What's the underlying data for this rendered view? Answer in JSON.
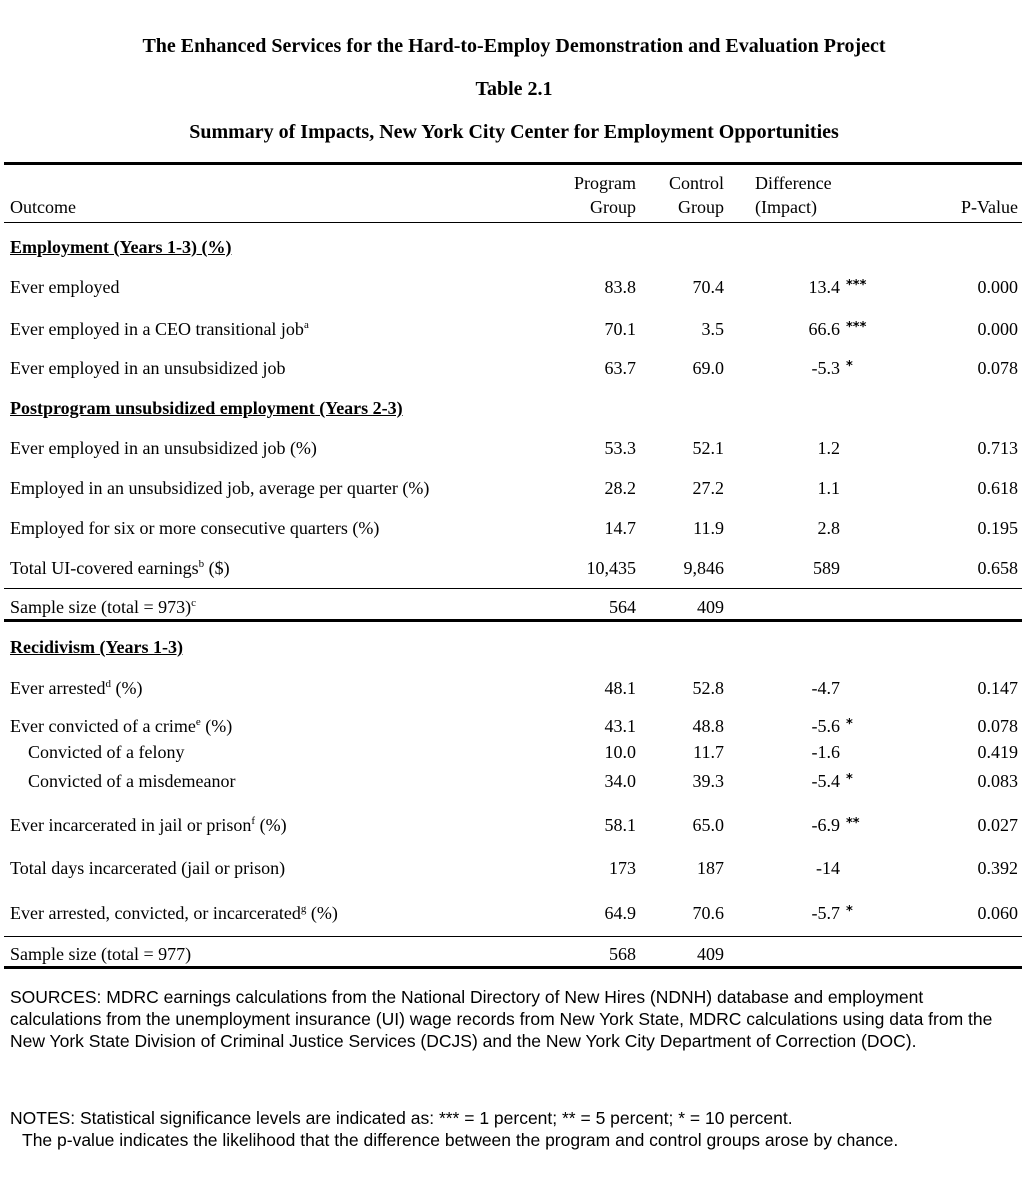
{
  "doc": {
    "project_title": "The Enhanced Services for the Hard-to-Employ Demonstration and Evaluation Project",
    "table_number": "Table 2.1",
    "table_title": "Summary of Impacts, New York City Center for Employment Opportunities"
  },
  "headers": {
    "outcome": "Outcome",
    "program_l1": "Program",
    "program_l2": "Group",
    "control_l1": "Control",
    "control_l2": "Group",
    "difference_l1": "Difference",
    "difference_l2": "(Impact)",
    "pvalue": "P-Value"
  },
  "sections": {
    "employment": "Employment (Years 1-3) (%)",
    "postprogram": "Postprogram unsubsidized employment  (Years 2-3)",
    "recidivism": "Recidivism (Years 1-3)"
  },
  "rows": {
    "r1": {
      "label": "Ever employed",
      "sup": "",
      "suffix": "",
      "program": "83.8",
      "control": "70.4",
      "difference": "13.4",
      "stars": "***",
      "pvalue": "0.000"
    },
    "r2": {
      "label": "Ever employed in a CEO transitional job",
      "sup": "a",
      "suffix": "",
      "program": "70.1",
      "control": "3.5",
      "difference": "66.6",
      "stars": "***",
      "pvalue": "0.000"
    },
    "r3": {
      "label": "Ever employed in an unsubsidized job",
      "sup": "",
      "suffix": "",
      "program": "63.7",
      "control": "69.0",
      "difference": "-5.3",
      "stars": "*",
      "pvalue": "0.078"
    },
    "r4": {
      "label": "Ever employed in an unsubsidized job (%)",
      "sup": "",
      "suffix": "",
      "program": "53.3",
      "control": "52.1",
      "difference": "1.2",
      "stars": "",
      "pvalue": "0.713"
    },
    "r5": {
      "label": "Employed in an unsubsidized job, average per quarter (%)",
      "sup": "",
      "suffix": "",
      "program": "28.2",
      "control": "27.2",
      "difference": "1.1",
      "stars": "",
      "pvalue": "0.618"
    },
    "r6": {
      "label": "Employed for six or more consecutive quarters (%)",
      "sup": "",
      "suffix": "",
      "program": "14.7",
      "control": "11.9",
      "difference": "2.8",
      "stars": "",
      "pvalue": "0.195"
    },
    "r7": {
      "label": "Total UI-covered earnings",
      "sup": "b",
      "suffix": " ($)",
      "program": "10,435",
      "control": "9,846",
      "difference": "589",
      "stars": "",
      "pvalue": "0.658"
    },
    "s1": {
      "label": "Sample size (total = 973)",
      "sup": "c",
      "program": "564",
      "control": "409"
    },
    "r8": {
      "label": "Ever arrested",
      "sup": "d",
      "suffix": " (%)",
      "program": "48.1",
      "control": "52.8",
      "difference": "-4.7",
      "stars": "",
      "pvalue": "0.147"
    },
    "r9": {
      "label": "Ever convicted of a crime",
      "sup": "e",
      "suffix": " (%)",
      "program": "43.1",
      "control": "48.8",
      "difference": "-5.6",
      "stars": "*",
      "pvalue": "0.078"
    },
    "r10": {
      "label": "Convicted of a felony",
      "sup": "",
      "suffix": "",
      "program": "10.0",
      "control": "11.7",
      "difference": "-1.6",
      "stars": "",
      "pvalue": "0.419"
    },
    "r11": {
      "label": "Convicted of a misdemeanor",
      "sup": "",
      "suffix": "",
      "program": "34.0",
      "control": "39.3",
      "difference": "-5.4",
      "stars": "*",
      "pvalue": "0.083"
    },
    "r12": {
      "label": "Ever incarcerated in jail or prison",
      "sup": "f",
      "suffix": " (%)",
      "program": "58.1",
      "control": "65.0",
      "difference": "-6.9",
      "stars": "**",
      "pvalue": "0.027"
    },
    "r13": {
      "label": "Total days incarcerated (jail or prison)",
      "sup": "",
      "suffix": "",
      "program": "173",
      "control": "187",
      "difference": "-14",
      "stars": "",
      "pvalue": "0.392"
    },
    "r14": {
      "label": "Ever arrested, convicted, or incarcerated",
      "sup": "g",
      "suffix": " (%)",
      "program": "64.9",
      "control": "70.6",
      "difference": "-5.7",
      "stars": "*",
      "pvalue": "0.060"
    },
    "s2": {
      "label": "Sample size (total = 977)",
      "sup": "",
      "program": "568",
      "control": "409"
    }
  },
  "notes": {
    "sources": "SOURCES: MDRC earnings calculations from the National Directory of New Hires (NDNH) database and employment calculations from the unemployment insurance (UI) wage records from New York State, MDRC calculations using data from the New York State Division of Criminal Justice Services (DCJS) and the New York City Department of Correction (DOC).",
    "notes_line": "NOTES: Statistical significance levels are indicated as: *** = 1 percent; ** = 5 percent; * = 10 percent.",
    "pvalue_note": "The p-value indicates the likelihood that the difference between the program and control groups arose by chance."
  }
}
